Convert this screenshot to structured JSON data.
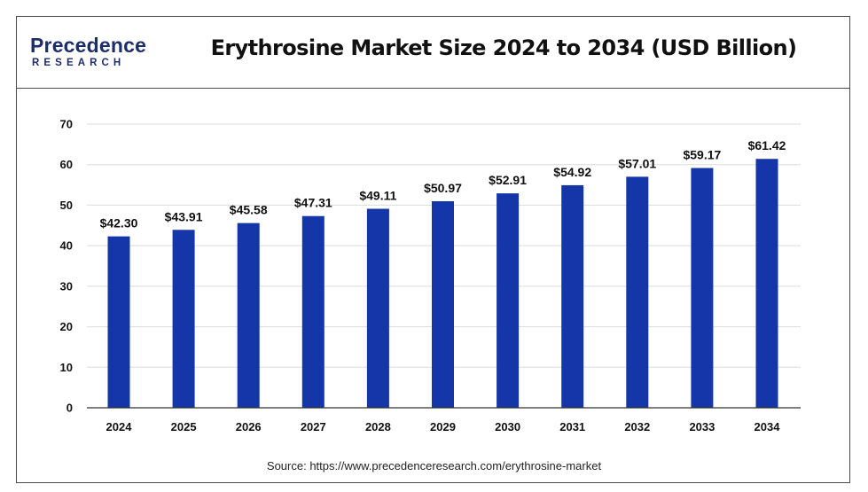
{
  "logo": {
    "line1": "Precedence",
    "line2": "RESEARCH",
    "color": "#1c2d6b"
  },
  "chart_title": "Erythrosine Market Size 2024 to 2034 (USD Billion)",
  "source_note": "Source: https://www.precedenceresearch.com/erythrosine-market",
  "colors": {
    "bar": "#1436a8",
    "grid": "#dcdcdc",
    "axis": "#333333"
  },
  "chart_data": {
    "type": "bar",
    "title": "Erythrosine Market Size 2024 to 2034 (USD Billion)",
    "xlabel": "",
    "ylabel": "",
    "categories": [
      "2024",
      "2025",
      "2026",
      "2027",
      "2028",
      "2029",
      "2030",
      "2031",
      "2032",
      "2033",
      "2034"
    ],
    "values": [
      42.3,
      43.91,
      45.58,
      47.31,
      49.11,
      50.97,
      52.91,
      54.92,
      57.01,
      59.17,
      61.42
    ],
    "data_labels": [
      "$42.30",
      "$43.91",
      "$45.58",
      "$47.31",
      "$49.11",
      "$50.97",
      "$52.91",
      "$54.92",
      "$57.01",
      "$59.17",
      "$61.42"
    ],
    "ylim": [
      0,
      70
    ],
    "yticks": [
      0,
      10,
      20,
      30,
      40,
      50,
      60,
      70
    ],
    "grid": true,
    "legend": "none"
  }
}
